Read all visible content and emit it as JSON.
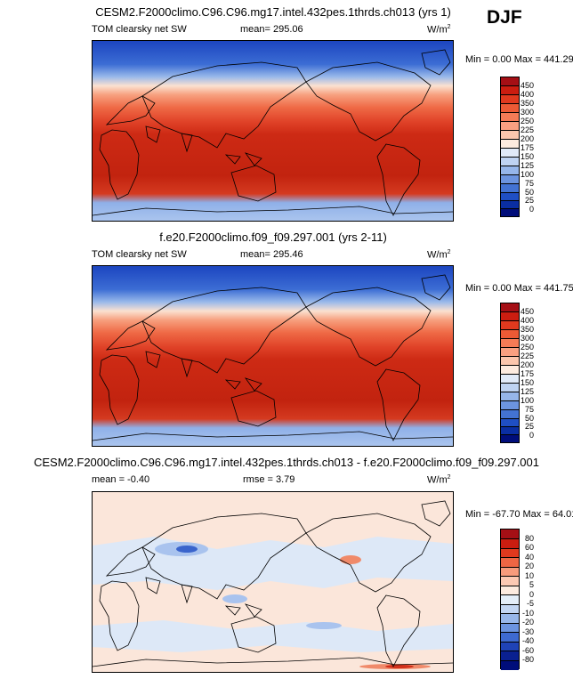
{
  "season": "DJF",
  "panels": [
    {
      "title": "CESM2.F2000climo.C96.C96.mg17.intel.432pes.1thrds.ch013 (yrs 1)",
      "variable": "TOM clearsky net SW",
      "stat1": "mean= 295.06",
      "stat2": "",
      "units": "W/m",
      "units_sup": "2",
      "minmax": "Min =   0.00 Max = 441.29",
      "levels": [
        "450",
        "400",
        "350",
        "300",
        "250",
        "225",
        "200",
        "175",
        "150",
        "125",
        "100",
        "75",
        "50",
        "25",
        "0"
      ],
      "colors": [
        "#a50f15",
        "#cb1d10",
        "#e0391e",
        "#ec5a35",
        "#f47b56",
        "#f9a081",
        "#fbc6ad",
        "#fdebdf",
        "#e1eaf8",
        "#bfd3f2",
        "#96b6ea",
        "#6c94df",
        "#4373d3",
        "#1f4fc4",
        "#0a2ea2",
        "#000d7a"
      ]
    },
    {
      "title": "f.e20.F2000climo.f09_f09.297.001 (yrs 2-11)",
      "variable": "TOM clearsky net SW",
      "stat1": "mean= 295.46",
      "stat2": "",
      "units": "W/m",
      "units_sup": "2",
      "minmax": "Min =   0.00 Max = 441.75",
      "levels": [
        "450",
        "400",
        "350",
        "300",
        "250",
        "225",
        "200",
        "175",
        "150",
        "125",
        "100",
        "75",
        "50",
        "25",
        "0"
      ],
      "colors": [
        "#a50f15",
        "#cb1d10",
        "#e0391e",
        "#ec5a35",
        "#f47b56",
        "#f9a081",
        "#fbc6ad",
        "#fdebdf",
        "#e1eaf8",
        "#bfd3f2",
        "#96b6ea",
        "#6c94df",
        "#4373d3",
        "#1f4fc4",
        "#0a2ea2",
        "#000d7a"
      ]
    },
    {
      "title": "CESM2.F2000climo.C96.C96.mg17.intel.432pes.1thrds.ch013 - f.e20.F2000climo.f09_f09.297.001",
      "variable": "",
      "stat1": "mean =  -0.40",
      "stat2": "rmse =   3.79",
      "units": "W/m",
      "units_sup": "2",
      "minmax": "Min = -67.70 Max =  64.01",
      "levels": [
        "80",
        "60",
        "40",
        "20",
        "10",
        "5",
        "0",
        "-5",
        "-10",
        "-20",
        "-30",
        "-40",
        "-60",
        "-80"
      ],
      "colors": [
        "#a50f15",
        "#cb1d10",
        "#e0391e",
        "#ee6644",
        "#f79b7c",
        "#fcc9b3",
        "#fdebdf",
        "#e4eef8",
        "#c3d6f2",
        "#98b7e9",
        "#6c94df",
        "#3e6ad0",
        "#1f43b6",
        "#0a2090",
        "#000d7a"
      ]
    }
  ]
}
